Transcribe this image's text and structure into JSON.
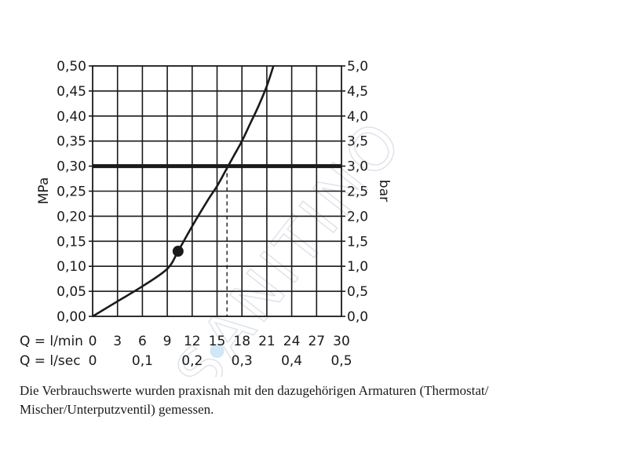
{
  "chart_data": {
    "type": "line",
    "y_left": {
      "label": "MPa",
      "range": [
        0,
        0.5
      ],
      "ticks": [
        "0,00",
        "0,05",
        "0,10",
        "0,15",
        "0,20",
        "0,25",
        "0,30",
        "0,35",
        "0,40",
        "0,45",
        "0,50"
      ]
    },
    "y_right": {
      "label": "bar",
      "range": [
        0,
        5
      ],
      "ticks": [
        "0,0",
        "0,5",
        "1,0",
        "1,5",
        "2,0",
        "2,5",
        "3,0",
        "3,5",
        "4,0",
        "4,5",
        "5,0"
      ]
    },
    "x_lmin": {
      "label": "Q = l/min",
      "range": [
        0,
        30
      ],
      "ticks": [
        "0",
        "3",
        "6",
        "9",
        "12",
        "15",
        "18",
        "21",
        "24",
        "27",
        "30"
      ]
    },
    "x_lsec": {
      "label": "Q = l/sec",
      "range": [
        0,
        0.5
      ],
      "ticks": [
        "0",
        "0,1",
        "0,2",
        "0,3",
        "0,4",
        "0,5"
      ]
    },
    "grid": true,
    "series": [
      {
        "x": [
          0,
          3,
          6,
          9,
          10.3,
          12,
          14,
          15,
          16,
          17,
          18,
          19,
          20,
          21,
          21.8
        ],
        "y": [
          0,
          0.03,
          0.06,
          0.095,
          0.13,
          0.18,
          0.235,
          0.26,
          0.29,
          0.32,
          0.35,
          0.385,
          0.42,
          0.46,
          0.5
        ]
      }
    ],
    "reference_line": {
      "y": 0.3
    },
    "marker_point": {
      "x": 10.3,
      "y": 0.13
    },
    "dashed_drop_x": 16.2,
    "highlight_dot_x": 15
  },
  "note": "Die Verbrauchswerte wurden praxisnah mit den dazugehörigen Armaturen (Thermostat/ Mischer/Unterputzventil) gemessen.",
  "watermark": "SANITINO",
  "colors": {
    "ink": "#1a1a1a",
    "watermark": "#dfe3e8",
    "highlight": "#cfe7f7"
  }
}
